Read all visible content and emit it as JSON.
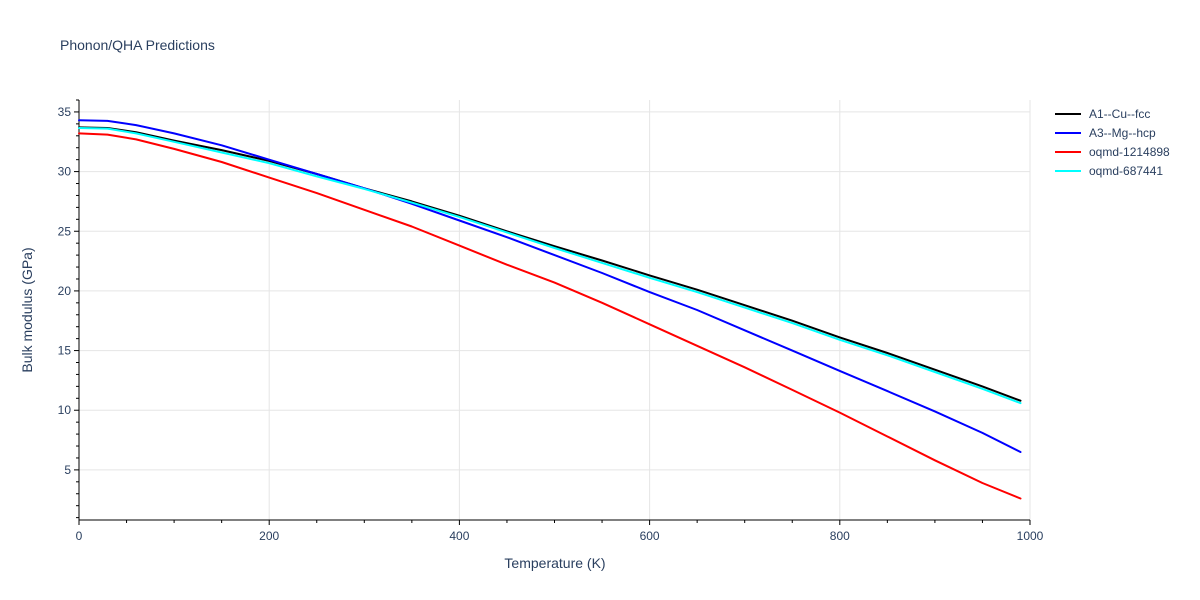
{
  "chart_data": {
    "type": "line",
    "title": "Phonon/QHA Predictions",
    "xlabel": "Temperature (K)",
    "ylabel": "Bulk modulus (GPa)",
    "xlim": [
      0,
      1000
    ],
    "ylim": [
      0.8,
      36
    ],
    "xticks": [
      0,
      200,
      400,
      600,
      800,
      1000
    ],
    "xtick_labels": [
      "0",
      "200",
      "400",
      "600",
      "800",
      "1000"
    ],
    "yticks": [
      5,
      10,
      15,
      20,
      25,
      30,
      35
    ],
    "ytick_labels": [
      "5",
      "10",
      "15",
      "20",
      "25",
      "30",
      "35"
    ],
    "grid": true,
    "legend_position": "top-right outside",
    "series": [
      {
        "name": "A1--Cu--fcc",
        "color": "#000000",
        "x": [
          0,
          30,
          60,
          100,
          150,
          200,
          250,
          300,
          350,
          400,
          450,
          500,
          550,
          600,
          650,
          700,
          750,
          800,
          850,
          900,
          950,
          990
        ],
        "y": [
          33.7,
          33.65,
          33.3,
          32.6,
          31.8,
          30.9,
          29.8,
          28.6,
          27.5,
          26.3,
          25.0,
          23.75,
          22.55,
          21.3,
          20.1,
          18.8,
          17.5,
          16.1,
          14.8,
          13.4,
          12.0,
          10.8
        ]
      },
      {
        "name": "A3--Mg--hcp",
        "color": "#0000ff",
        "x": [
          0,
          30,
          60,
          100,
          150,
          200,
          250,
          300,
          350,
          400,
          450,
          500,
          550,
          600,
          650,
          700,
          750,
          800,
          850,
          900,
          950,
          990
        ],
        "y": [
          34.3,
          34.25,
          33.9,
          33.2,
          32.2,
          31.0,
          29.8,
          28.6,
          27.3,
          25.9,
          24.5,
          23.0,
          21.5,
          19.9,
          18.4,
          16.7,
          15.0,
          13.3,
          11.6,
          9.9,
          8.1,
          6.5
        ]
      },
      {
        "name": "oqmd-1214898",
        "color": "#ff0000",
        "x": [
          0,
          30,
          60,
          100,
          150,
          200,
          250,
          300,
          350,
          400,
          450,
          500,
          550,
          600,
          650,
          700,
          750,
          800,
          850,
          900,
          950,
          990
        ],
        "y": [
          33.2,
          33.1,
          32.7,
          31.9,
          30.8,
          29.5,
          28.2,
          26.8,
          25.4,
          23.8,
          22.2,
          20.7,
          19.0,
          17.2,
          15.4,
          13.6,
          11.7,
          9.8,
          7.8,
          5.8,
          3.9,
          2.6
        ]
      },
      {
        "name": "oqmd-687441",
        "color": "#00ffff",
        "x": [
          0,
          30,
          60,
          100,
          150,
          200,
          250,
          300,
          350,
          400,
          450,
          500,
          550,
          600,
          650,
          700,
          750,
          800,
          850,
          900,
          950,
          990
        ],
        "y": [
          33.65,
          33.6,
          33.2,
          32.5,
          31.6,
          30.7,
          29.6,
          28.55,
          27.4,
          26.2,
          24.9,
          23.6,
          22.35,
          21.1,
          19.9,
          18.6,
          17.3,
          15.9,
          14.6,
          13.2,
          11.8,
          10.6
        ]
      }
    ]
  }
}
